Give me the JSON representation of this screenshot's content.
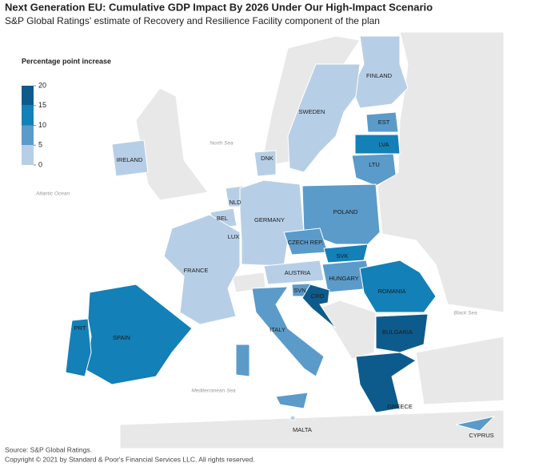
{
  "header": {
    "title": "Next Generation EU: Cumulative GDP Impact By 2026 Under Our High-Impact Scenario",
    "subtitle": "S&P Global Ratings' estimate of Recovery and Resilience Facility component of the plan"
  },
  "legend": {
    "title": "Percentage point increase",
    "ticks": [
      20,
      15,
      10,
      5,
      0
    ],
    "colors": [
      "#0d5b8c",
      "#1380b7",
      "#5a9bca",
      "#b7cfe6"
    ]
  },
  "regions": [
    {
      "label": "FINLAND",
      "color": "#b7cfe6"
    },
    {
      "label": "SWEDEN",
      "color": "#b7cfe6"
    },
    {
      "label": "EST",
      "color": "#5a9bca"
    },
    {
      "label": "LVA",
      "color": "#1380b7"
    },
    {
      "label": "LTU",
      "color": "#5a9bca"
    },
    {
      "label": "DNK",
      "color": "#b7cfe6"
    },
    {
      "label": "IRELAND",
      "color": "#b7cfe6"
    },
    {
      "label": "NLD",
      "color": "#b7cfe6"
    },
    {
      "label": "BEL",
      "color": "#b7cfe6"
    },
    {
      "label": "LUX",
      "color": "#b7cfe6"
    },
    {
      "label": "GERMANY",
      "color": "#b7cfe6"
    },
    {
      "label": "FRANCE",
      "color": "#b7cfe6"
    },
    {
      "label": "POLAND",
      "color": "#5a9bca"
    },
    {
      "label": "CZECH REP.",
      "color": "#5a9bca"
    },
    {
      "label": "SVK",
      "color": "#1380b7"
    },
    {
      "label": "AUSTRIA",
      "color": "#b7cfe6"
    },
    {
      "label": "HUNGARY",
      "color": "#5a9bca"
    },
    {
      "label": "SVN",
      "color": "#5a9bca"
    },
    {
      "label": "CRO",
      "color": "#0d5b8c"
    },
    {
      "label": "ROMANIA",
      "color": "#1380b7"
    },
    {
      "label": "BULGARIA",
      "color": "#0d5b8c"
    },
    {
      "label": "GREECE",
      "color": "#0d5b8c"
    },
    {
      "label": "ITALY",
      "color": "#5a9bca"
    },
    {
      "label": "SPAIN",
      "color": "#1380b7"
    },
    {
      "label": "PRT",
      "color": "#1380b7"
    },
    {
      "label": "MALTA",
      "color": "#b7cfe6"
    },
    {
      "label": "CYPRUS",
      "color": "#5a9bca"
    }
  ],
  "seas": [
    "North Sea",
    "Atlantic Ocean",
    "Black Sea",
    "Mediterranean Sea"
  ],
  "footer": {
    "source": "Source: S&P Global Ratings.",
    "copyright": "Copyright © 2021 by Standard & Poor's Financial Services LLC. All rights reserved."
  }
}
